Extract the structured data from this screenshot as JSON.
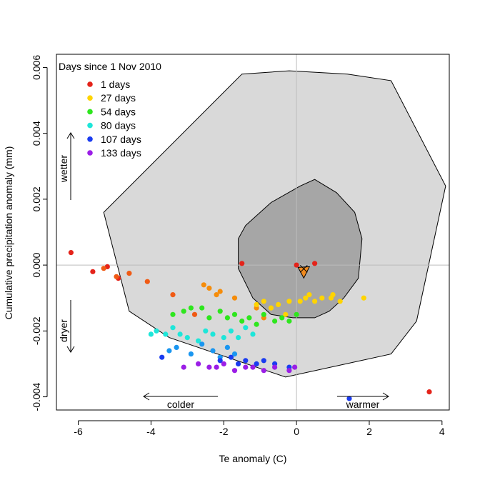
{
  "chart_data": {
    "type": "scatter",
    "xlabel": "Te anomaly (C)",
    "ylabel": "Cumulative precipitation anomaly (mm)",
    "xlim": [
      -6.6,
      4.2
    ],
    "ylim": [
      -0.0044,
      0.0064
    ],
    "x_ticks": [
      -6,
      -4,
      -2,
      0,
      2,
      4
    ],
    "x_tick_labels": [
      "-6",
      "-4",
      "-2",
      "0",
      "2",
      "4"
    ],
    "y_ticks": [
      -0.004,
      -0.002,
      0.0,
      0.002,
      0.004,
      0.006
    ],
    "y_tick_labels": [
      "-0.004",
      "-0.002",
      "0.000",
      "0.002",
      "0.004",
      "0.006"
    ],
    "grid": false,
    "reference_lines": {
      "x": 0,
      "y": 0,
      "color": "#bdbdbd"
    },
    "legend": {
      "title": "Days since 1 Nov 2010",
      "position": "top-left",
      "entries": [
        {
          "label": "1 days",
          "color": "#e4231a"
        },
        {
          "label": "27 days",
          "color": "#ffd400"
        },
        {
          "label": "54 days",
          "color": "#2ee61e"
        },
        {
          "label": "80 days",
          "color": "#1ee6d9"
        },
        {
          "label": "107 days",
          "color": "#1a3cf0"
        },
        {
          "label": "133 days",
          "color": "#9b1ee6"
        }
      ]
    },
    "annotations": {
      "wetter": "wetter",
      "dryer": "dryer",
      "colder": "colder",
      "warmer": "warmer"
    },
    "regions": [
      {
        "name": "outer envelope",
        "fill": "#d9d9d9",
        "points": [
          [
            -1.5,
            0.0058
          ],
          [
            -0.2,
            0.0059
          ],
          [
            1.4,
            0.0058
          ],
          [
            2.6,
            0.0056
          ],
          [
            4.1,
            0.0024
          ],
          [
            3.3,
            -0.0017
          ],
          [
            2.6,
            -0.0027
          ],
          [
            -0.3,
            -0.0034
          ],
          [
            -3.5,
            -0.0022
          ],
          [
            -4.6,
            -0.0014
          ],
          [
            -5.3,
            0.0016
          ]
        ]
      },
      {
        "name": "inner envelope",
        "fill": "#a6a6a6",
        "points": [
          [
            -1.4,
            0.0012
          ],
          [
            -0.7,
            0.0019
          ],
          [
            0.1,
            0.0024
          ],
          [
            0.5,
            0.0026
          ],
          [
            1.1,
            0.0022
          ],
          [
            1.6,
            0.0016
          ],
          [
            1.8,
            0.0008
          ],
          [
            1.7,
            -0.0004
          ],
          [
            1.3,
            -0.001
          ],
          [
            0.9,
            -0.0014
          ],
          [
            0.5,
            -0.0016
          ],
          [
            -0.1,
            -0.0016
          ],
          [
            -0.7,
            -0.0015
          ],
          [
            -1.2,
            -0.001
          ],
          [
            -1.6,
            -0.0001
          ],
          [
            -1.6,
            0.0008
          ]
        ]
      }
    ],
    "marker": {
      "x": 0.2,
      "y": -0.0002,
      "color": "#f08a1e"
    },
    "series": [
      {
        "color": "#e4231a",
        "points": [
          [
            -6.2,
            0.00038
          ],
          [
            -5.6,
            -0.0002
          ],
          [
            -5.2,
            -5e-05
          ],
          [
            -4.9,
            -0.0004
          ],
          [
            -1.5,
            5e-05
          ],
          [
            0.0,
            0.0
          ],
          [
            0.5,
            5e-05
          ],
          [
            3.65,
            -0.00385
          ]
        ]
      },
      {
        "color": "#f05a14",
        "points": [
          [
            -5.3,
            -0.0001
          ],
          [
            -4.95,
            -0.00035
          ],
          [
            -4.6,
            -0.00025
          ],
          [
            -4.1,
            -0.0005
          ],
          [
            -3.4,
            -0.0009
          ],
          [
            -2.8,
            -0.0015
          ]
        ]
      },
      {
        "color": "#f58c0a",
        "points": [
          [
            -2.55,
            -0.0006
          ],
          [
            -2.4,
            -0.0007
          ],
          [
            -2.2,
            -0.0009
          ],
          [
            -2.1,
            -0.0008
          ],
          [
            -1.7,
            -0.001
          ],
          [
            -1.1,
            -0.0013
          ],
          [
            -0.9,
            -0.0016
          ]
        ]
      },
      {
        "color": "#ffd400",
        "points": [
          [
            -1.1,
            -0.0012
          ],
          [
            -0.9,
            -0.0011
          ],
          [
            -0.7,
            -0.0013
          ],
          [
            -0.5,
            -0.0012
          ],
          [
            -0.3,
            -0.0015
          ],
          [
            -0.2,
            -0.0011
          ],
          [
            0.1,
            -0.0011
          ],
          [
            0.25,
            -0.001
          ],
          [
            0.35,
            -0.0009
          ],
          [
            0.5,
            -0.0011
          ],
          [
            0.7,
            -0.001
          ],
          [
            0.95,
            -0.001
          ],
          [
            1.0,
            -0.0009
          ],
          [
            1.2,
            -0.0011
          ],
          [
            1.85,
            -0.001
          ]
        ]
      },
      {
        "color": "#2ee61e",
        "points": [
          [
            -3.4,
            -0.0015
          ],
          [
            -3.1,
            -0.0014
          ],
          [
            -2.9,
            -0.0013
          ],
          [
            -2.6,
            -0.0013
          ],
          [
            -2.4,
            -0.0016
          ],
          [
            -2.1,
            -0.0014
          ],
          [
            -1.9,
            -0.0016
          ],
          [
            -1.7,
            -0.0015
          ],
          [
            -1.5,
            -0.0017
          ],
          [
            -1.3,
            -0.0016
          ],
          [
            -1.1,
            -0.0018
          ],
          [
            -0.9,
            -0.0015
          ],
          [
            -0.6,
            -0.0017
          ],
          [
            -0.4,
            -0.0016
          ],
          [
            -0.2,
            -0.0017
          ],
          [
            0.0,
            -0.0015
          ]
        ]
      },
      {
        "color": "#1ee6d9",
        "points": [
          [
            -4.0,
            -0.0021
          ],
          [
            -3.85,
            -0.002
          ],
          [
            -3.6,
            -0.0021
          ],
          [
            -3.4,
            -0.0019
          ],
          [
            -3.2,
            -0.0021
          ],
          [
            -3.0,
            -0.0022
          ],
          [
            -2.7,
            -0.0023
          ],
          [
            -2.5,
            -0.002
          ],
          [
            -2.3,
            -0.0021
          ],
          [
            -2.0,
            -0.0022
          ],
          [
            -1.8,
            -0.002
          ],
          [
            -1.6,
            -0.0022
          ],
          [
            -1.4,
            -0.0019
          ],
          [
            -1.2,
            -0.0021
          ]
        ]
      },
      {
        "color": "#1a96f0",
        "points": [
          [
            -3.5,
            -0.0026
          ],
          [
            -3.3,
            -0.0025
          ],
          [
            -2.9,
            -0.0027
          ],
          [
            -2.6,
            -0.0024
          ],
          [
            -2.3,
            -0.0026
          ],
          [
            -2.1,
            -0.0028
          ],
          [
            -1.9,
            -0.0025
          ],
          [
            -1.7,
            -0.0027
          ]
        ]
      },
      {
        "color": "#1a3cf0",
        "points": [
          [
            -3.7,
            -0.0028
          ],
          [
            -2.1,
            -0.0029
          ],
          [
            -1.8,
            -0.0028
          ],
          [
            -1.6,
            -0.003
          ],
          [
            -1.4,
            -0.0029
          ],
          [
            -1.1,
            -0.003
          ],
          [
            -0.9,
            -0.0029
          ],
          [
            -0.6,
            -0.003
          ],
          [
            -0.2,
            -0.0031
          ],
          [
            1.45,
            -0.00405
          ]
        ]
      },
      {
        "color": "#9b1ee6",
        "points": [
          [
            -3.1,
            -0.0031
          ],
          [
            -2.7,
            -0.003
          ],
          [
            -2.4,
            -0.0031
          ],
          [
            -2.2,
            -0.0031
          ],
          [
            -2.0,
            -0.003
          ],
          [
            -1.7,
            -0.0032
          ],
          [
            -1.4,
            -0.0031
          ],
          [
            -1.2,
            -0.0031
          ],
          [
            -0.9,
            -0.0032
          ],
          [
            -0.6,
            -0.0031
          ],
          [
            -0.2,
            -0.0032
          ],
          [
            -0.05,
            -0.0031
          ]
        ]
      }
    ]
  }
}
